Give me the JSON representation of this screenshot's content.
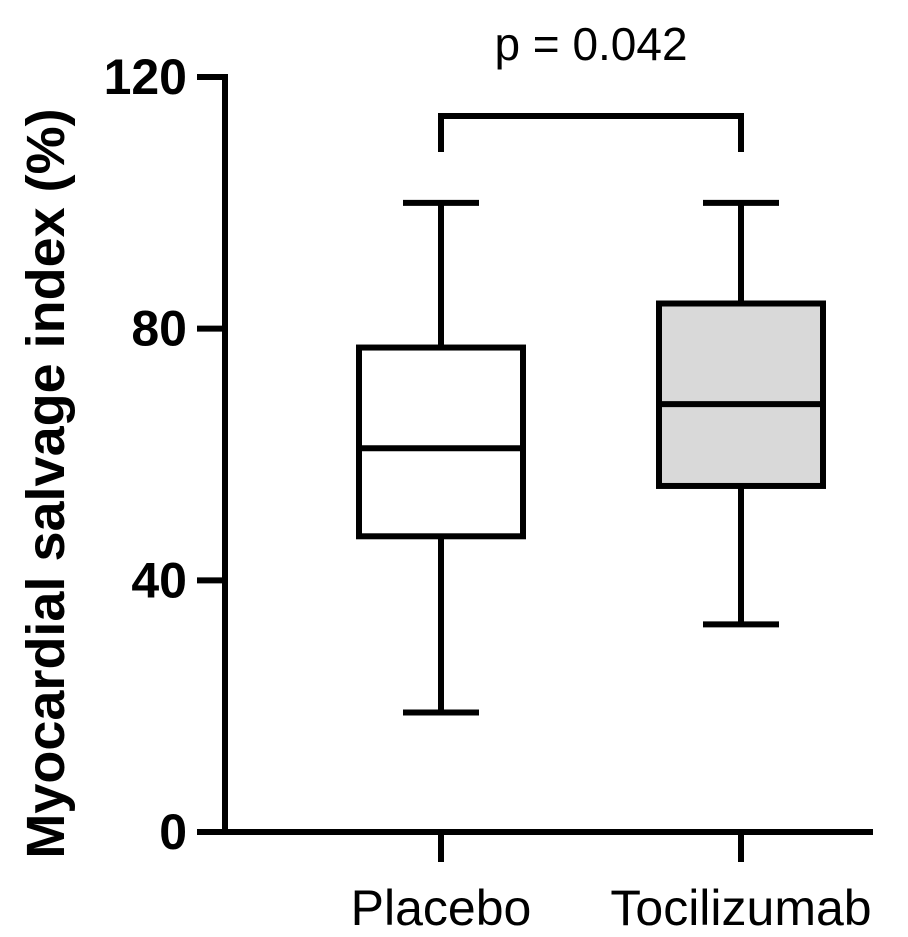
{
  "chart_data": {
    "type": "box",
    "ylabel": "Myocardial salvage index (%)",
    "ylim": [
      0,
      120
    ],
    "yticks": [
      0,
      40,
      80,
      120
    ],
    "categories": [
      "Placebo",
      "Tocilizumab"
    ],
    "boxes": [
      {
        "label": "Placebo",
        "min": 19,
        "q1": 47,
        "median": 61,
        "q3": 77,
        "max": 100,
        "fill": "#ffffff"
      },
      {
        "label": "Tocilizumab",
        "min": 33,
        "q1": 55,
        "median": 68,
        "q3": 84,
        "max": 100,
        "fill": "#d9d9d9"
      }
    ],
    "annotation": {
      "text": "p = 0.042",
      "between": [
        "Placebo",
        "Tocilizumab"
      ]
    },
    "grid": false
  }
}
